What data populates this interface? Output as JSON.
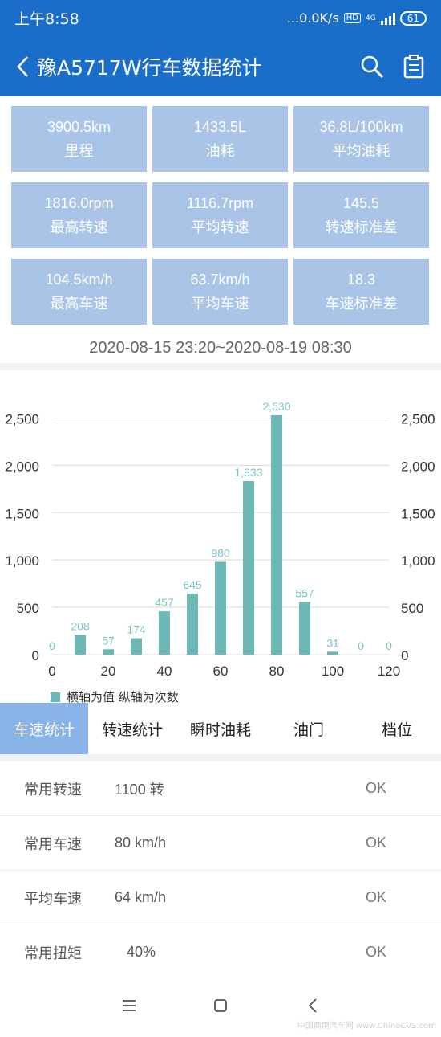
{
  "status_bar": {
    "time": "上午8:58",
    "speed": "...0.0K/s",
    "hd": "HD",
    "network": "4G",
    "battery": "61"
  },
  "header": {
    "title": "豫A5717W行车数据统计"
  },
  "stats": [
    {
      "value": "3900.5km",
      "label": "里程"
    },
    {
      "value": "1433.5L",
      "label": "油耗"
    },
    {
      "value": "36.8L/100km",
      "label": "平均油耗"
    },
    {
      "value": "1816.0rpm",
      "label": "最高转速"
    },
    {
      "value": "1116.7rpm",
      "label": "平均转速"
    },
    {
      "value": "145.5",
      "label": "转速标准差"
    },
    {
      "value": "104.5km/h",
      "label": "最高车速"
    },
    {
      "value": "63.7km/h",
      "label": "平均车速"
    },
    {
      "value": "18.3",
      "label": "车速标准差"
    }
  ],
  "date_range": "2020-08-15 23:20~2020-08-19 08:30",
  "chart_data": {
    "type": "bar",
    "x": [
      0,
      10,
      20,
      30,
      40,
      50,
      60,
      70,
      80,
      90,
      100,
      110,
      120
    ],
    "values": [
      0,
      208,
      57,
      174,
      457,
      645,
      980,
      1833,
      2530,
      557,
      31,
      0,
      0
    ],
    "value_labels": [
      "0",
      "208",
      "57",
      "174",
      "457",
      "645",
      "980",
      "1,833",
      "2,530",
      "557",
      "31",
      "0",
      "0"
    ],
    "xlim": [
      0,
      120
    ],
    "xticks": [
      0,
      20,
      40,
      60,
      80,
      100,
      120
    ],
    "ylim": [
      0,
      2750
    ],
    "yticks": [
      0,
      500,
      1000,
      1500,
      2000,
      2500
    ],
    "ytick_labels": [
      "0",
      "500",
      "1,000",
      "1,500",
      "2,000",
      "2,500"
    ],
    "legend": "横轴为值 纵轴为次数",
    "legend_position": "bottom-left",
    "grid": true,
    "bar_color": "#6cb8b5",
    "label_color": "#7dc4c1"
  },
  "tabs": [
    {
      "label": "车速统计",
      "active": true
    },
    {
      "label": "转速统计",
      "active": false
    },
    {
      "label": "瞬时油耗",
      "active": false
    },
    {
      "label": "油门",
      "active": false
    },
    {
      "label": "档位",
      "active": false
    }
  ],
  "info_rows": [
    {
      "label": "常用转速",
      "value": "1100 转",
      "status": "OK"
    },
    {
      "label": "常用车速",
      "value": "80 km/h",
      "status": "OK"
    },
    {
      "label": "平均车速",
      "value": "64 km/h",
      "status": "OK"
    },
    {
      "label": "常用扭矩",
      "value": "40%",
      "status": "OK"
    }
  ],
  "watermark": "中国商用汽车网 www.ChinaCVS.com",
  "colors": {
    "primary": "#1a6ec9",
    "stat_bg": "#a9c4e6",
    "tab_active": "#8ab3e8"
  }
}
